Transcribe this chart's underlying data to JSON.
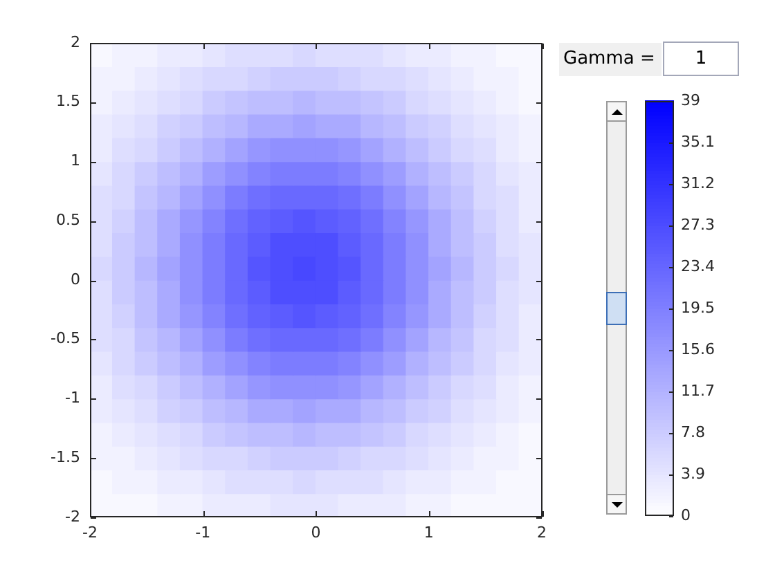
{
  "chart_data": {
    "type": "heatmap",
    "color": "#0000ff",
    "x": [
      -1.9,
      -1.7,
      -1.5,
      -1.3,
      -1.1,
      -0.9,
      -0.7,
      -0.5,
      -0.3,
      -0.1,
      0.1,
      0.3,
      0.5,
      0.7,
      0.9,
      1.1,
      1.3,
      1.5,
      1.7,
      1.9
    ],
    "cells": [
      [
        1,
        2,
        2,
        3,
        3,
        4,
        5,
        5,
        5,
        6,
        5,
        5,
        5,
        4,
        3,
        3,
        2,
        2,
        1,
        1
      ],
      [
        2,
        2,
        3,
        4,
        5,
        6,
        6,
        7,
        8,
        8,
        8,
        7,
        6,
        6,
        5,
        4,
        3,
        2,
        2,
        1
      ],
      [
        2,
        3,
        4,
        5,
        6,
        8,
        9,
        10,
        10,
        11,
        10,
        10,
        9,
        8,
        6,
        5,
        4,
        3,
        2,
        1
      ],
      [
        3,
        4,
        5,
        7,
        8,
        10,
        11,
        13,
        13,
        14,
        13,
        13,
        11,
        10,
        8,
        7,
        5,
        4,
        3,
        2
      ],
      [
        3,
        5,
        6,
        8,
        10,
        12,
        14,
        16,
        17,
        17,
        17,
        16,
        14,
        12,
        10,
        8,
        6,
        5,
        3,
        2
      ],
      [
        4,
        6,
        8,
        10,
        12,
        15,
        17,
        19,
        20,
        20,
        20,
        19,
        17,
        15,
        12,
        10,
        8,
        6,
        4,
        3
      ],
      [
        5,
        6,
        9,
        11,
        14,
        17,
        20,
        22,
        23,
        23,
        23,
        22,
        20,
        17,
        14,
        11,
        9,
        6,
        5,
        3
      ],
      [
        5,
        7,
        10,
        13,
        16,
        19,
        22,
        24,
        25,
        26,
        25,
        24,
        22,
        19,
        16,
        13,
        10,
        7,
        5,
        3
      ],
      [
        5,
        8,
        10,
        13,
        17,
        20,
        23,
        25,
        27,
        27,
        27,
        25,
        23,
        20,
        17,
        13,
        10,
        8,
        5,
        4
      ],
      [
        6,
        8,
        11,
        14,
        17,
        20,
        23,
        26,
        27,
        28,
        27,
        26,
        23,
        20,
        17,
        14,
        11,
        8,
        6,
        4
      ],
      [
        5,
        8,
        10,
        13,
        17,
        20,
        23,
        25,
        27,
        27,
        27,
        25,
        23,
        20,
        17,
        13,
        10,
        8,
        5,
        4
      ],
      [
        5,
        7,
        10,
        13,
        16,
        19,
        22,
        24,
        25,
        26,
        25,
        24,
        22,
        19,
        16,
        13,
        10,
        7,
        5,
        3
      ],
      [
        5,
        6,
        9,
        11,
        14,
        17,
        20,
        22,
        23,
        23,
        23,
        22,
        20,
        17,
        14,
        11,
        9,
        6,
        5,
        3
      ],
      [
        4,
        6,
        8,
        10,
        12,
        15,
        17,
        19,
        20,
        20,
        20,
        19,
        17,
        15,
        12,
        10,
        8,
        6,
        4,
        3
      ],
      [
        3,
        5,
        6,
        8,
        10,
        12,
        14,
        16,
        17,
        17,
        17,
        16,
        14,
        12,
        10,
        8,
        6,
        5,
        3,
        2
      ],
      [
        3,
        4,
        5,
        7,
        8,
        10,
        11,
        13,
        13,
        14,
        13,
        13,
        11,
        10,
        8,
        7,
        5,
        4,
        3,
        2
      ],
      [
        2,
        3,
        4,
        5,
        6,
        8,
        9,
        10,
        10,
        11,
        10,
        10,
        9,
        8,
        6,
        5,
        4,
        3,
        2,
        1
      ],
      [
        2,
        2,
        3,
        4,
        5,
        6,
        6,
        7,
        8,
        8,
        8,
        7,
        6,
        6,
        5,
        4,
        3,
        2,
        2,
        1
      ],
      [
        1,
        2,
        2,
        3,
        3,
        4,
        5,
        5,
        5,
        6,
        5,
        5,
        5,
        4,
        3,
        3,
        2,
        2,
        1,
        1
      ],
      [
        1,
        1,
        1,
        2,
        2,
        3,
        3,
        3,
        4,
        4,
        4,
        3,
        3,
        3,
        2,
        2,
        1,
        1,
        1,
        1
      ]
    ],
    "xlim": [
      -2,
      2
    ],
    "xticks": [
      -2,
      -1,
      0,
      1,
      2
    ],
    "ylim": [
      -2,
      2
    ],
    "yticks": [
      -2,
      -1.5,
      -1,
      -0.5,
      0,
      0.5,
      1,
      1.5,
      2
    ],
    "clim": [
      0,
      39
    ],
    "cticks": [
      0,
      3.9,
      7.8,
      11.7,
      15.6,
      19.5,
      23.4,
      27.3,
      31.2,
      35.1,
      39
    ],
    "annotations": [
      "Gamma =",
      "1"
    ]
  }
}
